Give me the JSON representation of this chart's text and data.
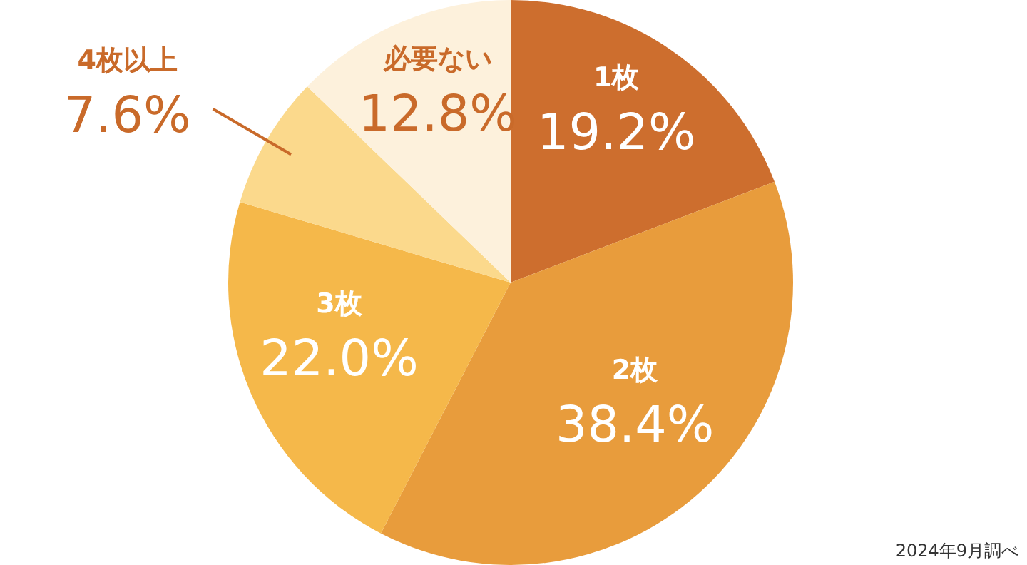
{
  "chart_data": {
    "type": "pie",
    "categories": [
      "1枚",
      "2枚",
      "3枚",
      "4枚以上",
      "必要ない"
    ],
    "values": [
      19.2,
      38.4,
      22.0,
      7.6,
      12.8
    ],
    "value_labels": [
      "19.2%",
      "38.4%",
      "22.0%",
      "7.6%",
      "12.8%"
    ],
    "colors": [
      "#cd6e2e",
      "#e89c3c",
      "#f5b84a",
      "#fbd98c",
      "#fdf1dc"
    ],
    "annotations": [
      "2024年9月調べ"
    ]
  }
}
